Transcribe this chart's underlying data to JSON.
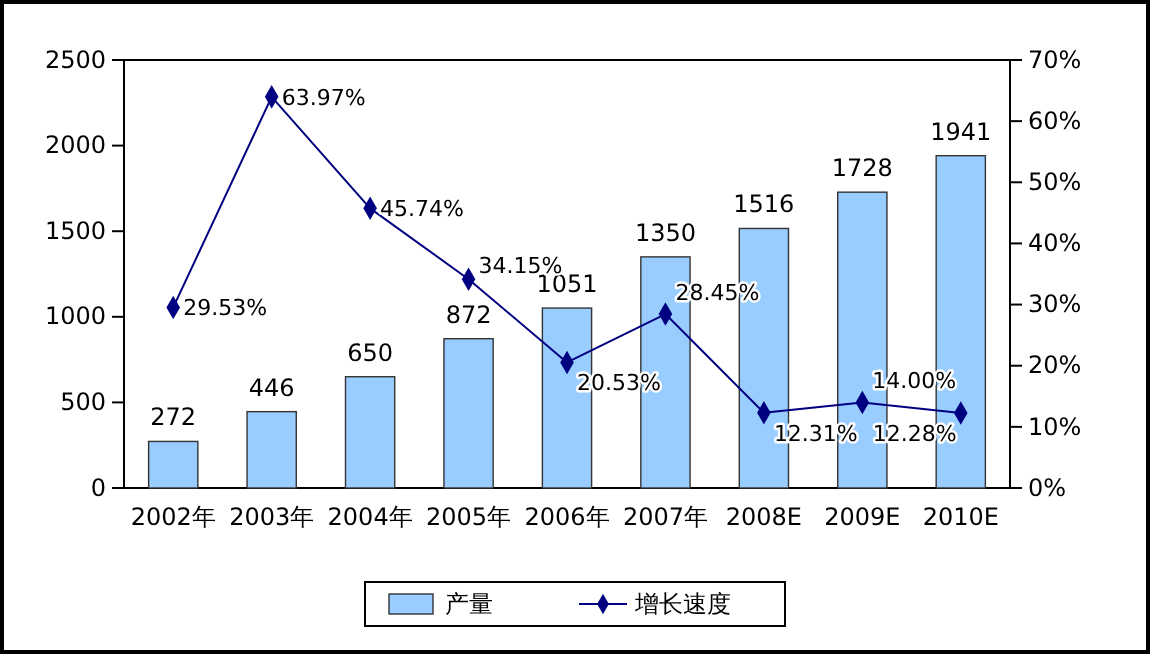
{
  "chart_data": {
    "type": "bar",
    "categories": [
      "2002年",
      "2003年",
      "2004年",
      "2005年",
      "2006年",
      "2007年",
      "2008E",
      "2009E",
      "2010E"
    ],
    "series": [
      {
        "name": "产量",
        "color": "#99ccff",
        "values": [
          272,
          446,
          650,
          872,
          1051,
          1350,
          1516,
          1728,
          1941
        ],
        "data_labels": true
      },
      {
        "name": "增长速度",
        "type": "line",
        "axis": "y2",
        "color": "#000080",
        "marker": "diamond",
        "values": [
          29.53,
          63.97,
          45.74,
          34.15,
          20.53,
          28.45,
          12.31,
          14.0,
          12.28
        ],
        "value_labels": [
          "29.53%",
          "63.97%",
          "45.74%",
          "34.15%",
          "20.53%",
          "28.45%",
          "12.31%",
          "14.00%",
          "12.28%"
        ]
      }
    ],
    "ylim": [
      0,
      2500
    ],
    "yticks": [
      0,
      500,
      1000,
      1500,
      2000,
      2500
    ],
    "y2lim": [
      0,
      70
    ],
    "y2ticks": [
      {
        "value": 0,
        "label": "0%"
      },
      {
        "value": 10,
        "label": "10%"
      },
      {
        "value": 20,
        "label": "20%"
      },
      {
        "value": 30,
        "label": "30%"
      },
      {
        "value": 40,
        "label": "40%"
      },
      {
        "value": 50,
        "label": "50%"
      },
      {
        "value": 60,
        "label": "60%"
      },
      {
        "value": 70,
        "label": "70%"
      }
    ],
    "grid": false,
    "legend": "bottom"
  }
}
